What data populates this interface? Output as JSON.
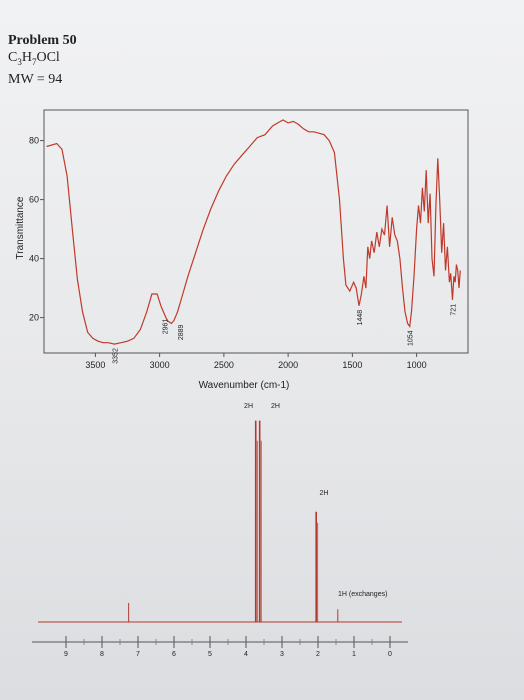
{
  "problem": {
    "title": "Problem 50",
    "formula": "C3H7OCl",
    "mw": "MW = 94"
  },
  "colors": {
    "ir_trace": "#c0392b",
    "nmr_trace": "#b03a2e",
    "frame": "#555555"
  },
  "chart_data": [
    {
      "type": "line",
      "title": "",
      "xlabel": "Wavenumber (cm-1)",
      "ylabel": "Transmittance",
      "xlim": [
        3900,
        600
      ],
      "ylim": [
        8,
        88
      ],
      "x_reversed": true,
      "xticks": [
        3500,
        3000,
        2500,
        2000,
        1500,
        1000
      ],
      "yticks": [
        20,
        40,
        60,
        80
      ],
      "series": [
        {
          "points": [
            [
              3880,
              78
            ],
            [
              3800,
              79
            ],
            [
              3760,
              77
            ],
            [
              3720,
              68
            ],
            [
              3680,
              50
            ],
            [
              3640,
              33
            ],
            [
              3600,
              22
            ],
            [
              3560,
              15
            ],
            [
              3520,
              13
            ],
            [
              3480,
              12
            ],
            [
              3440,
              11.5
            ],
            [
              3400,
              11.5
            ],
            [
              3352,
              11
            ],
            [
              3300,
              11.5
            ],
            [
              3250,
              12
            ],
            [
              3200,
              13
            ],
            [
              3150,
              16
            ],
            [
              3100,
              22
            ],
            [
              3060,
              28
            ],
            [
              3020,
              28
            ],
            [
              2990,
              24
            ],
            [
              2961,
              21
            ],
            [
              2940,
              19
            ],
            [
              2909,
              18
            ],
            [
              2889,
              19
            ],
            [
              2860,
              22
            ],
            [
              2820,
              28
            ],
            [
              2780,
              34
            ],
            [
              2720,
              42
            ],
            [
              2660,
              50
            ],
            [
              2600,
              57
            ],
            [
              2540,
              63
            ],
            [
              2480,
              68
            ],
            [
              2420,
              72
            ],
            [
              2360,
              75
            ],
            [
              2300,
              78
            ],
            [
              2240,
              81
            ],
            [
              2180,
              82
            ],
            [
              2120,
              85
            ],
            [
              2080,
              86
            ],
            [
              2040,
              87
            ],
            [
              2000,
              86
            ],
            [
              1960,
              86.5
            ],
            [
              1920,
              85.5
            ],
            [
              1880,
              84
            ],
            [
              1840,
              83
            ],
            [
              1800,
              83
            ],
            [
              1760,
              82.5
            ],
            [
              1720,
              82
            ],
            [
              1680,
              80
            ],
            [
              1640,
              76
            ],
            [
              1600,
              60
            ],
            [
              1570,
              40
            ],
            [
              1550,
              31
            ],
            [
              1520,
              29
            ],
            [
              1490,
              32
            ],
            [
              1470,
              30
            ],
            [
              1448,
              24
            ],
            [
              1430,
              28
            ],
            [
              1410,
              34
            ],
            [
              1395,
              30
            ],
            [
              1380,
              44
            ],
            [
              1365,
              40
            ],
            [
              1350,
              46
            ],
            [
              1330,
              42
            ],
            [
              1310,
              49
            ],
            [
              1290,
              44
            ],
            [
              1270,
              50
            ],
            [
              1250,
              48
            ],
            [
              1230,
              58
            ],
            [
              1210,
              44
            ],
            [
              1190,
              54
            ],
            [
              1170,
              48
            ],
            [
              1150,
              46
            ],
            [
              1130,
              40
            ],
            [
              1110,
              30
            ],
            [
              1090,
              22
            ],
            [
              1070,
              18
            ],
            [
              1054,
              17
            ],
            [
              1040,
              22
            ],
            [
              1020,
              34
            ],
            [
              1000,
              50
            ],
            [
              985,
              58
            ],
            [
              970,
              52
            ],
            [
              955,
              64
            ],
            [
              940,
              56
            ],
            [
              925,
              70
            ],
            [
              910,
              52
            ],
            [
              895,
              62
            ],
            [
              880,
              40
            ],
            [
              865,
              34
            ],
            [
              850,
              58
            ],
            [
              835,
              74
            ],
            [
              820,
              60
            ],
            [
              805,
              42
            ],
            [
              790,
              52
            ],
            [
              775,
              36
            ],
            [
              760,
              44
            ],
            [
              745,
              32
            ],
            [
              735,
              35
            ],
            [
              721,
              26
            ],
            [
              710,
              34
            ],
            [
              700,
              32
            ],
            [
              690,
              38
            ],
            [
              680,
              36
            ],
            [
              670,
              30
            ],
            [
              660,
              36
            ]
          ]
        }
      ],
      "annotations": [
        "3352",
        "2961",
        "2889",
        "1448",
        "1054",
        "721"
      ]
    },
    {
      "type": "line",
      "title": "",
      "xlabel": "",
      "ylabel": "",
      "xlim": [
        10,
        -0.5
      ],
      "x_reversed": true,
      "xticks": [
        9,
        8,
        7,
        6,
        5,
        4,
        3,
        2,
        1,
        0
      ],
      "peaks": [
        {
          "ppm": 7.26,
          "height": 0.09,
          "label": ""
        },
        {
          "ppm": 3.73,
          "height": 0.95,
          "label": "2H"
        },
        {
          "ppm": 3.62,
          "height": 0.95,
          "label": "2H"
        },
        {
          "ppm": 2.05,
          "height": 0.52,
          "label": "2H"
        },
        {
          "ppm": 1.45,
          "height": 0.06,
          "label": "1H (exchanges)"
        }
      ],
      "peak_labels": [
        "2H",
        "2H",
        "2H",
        "1H (exchanges)"
      ]
    }
  ]
}
